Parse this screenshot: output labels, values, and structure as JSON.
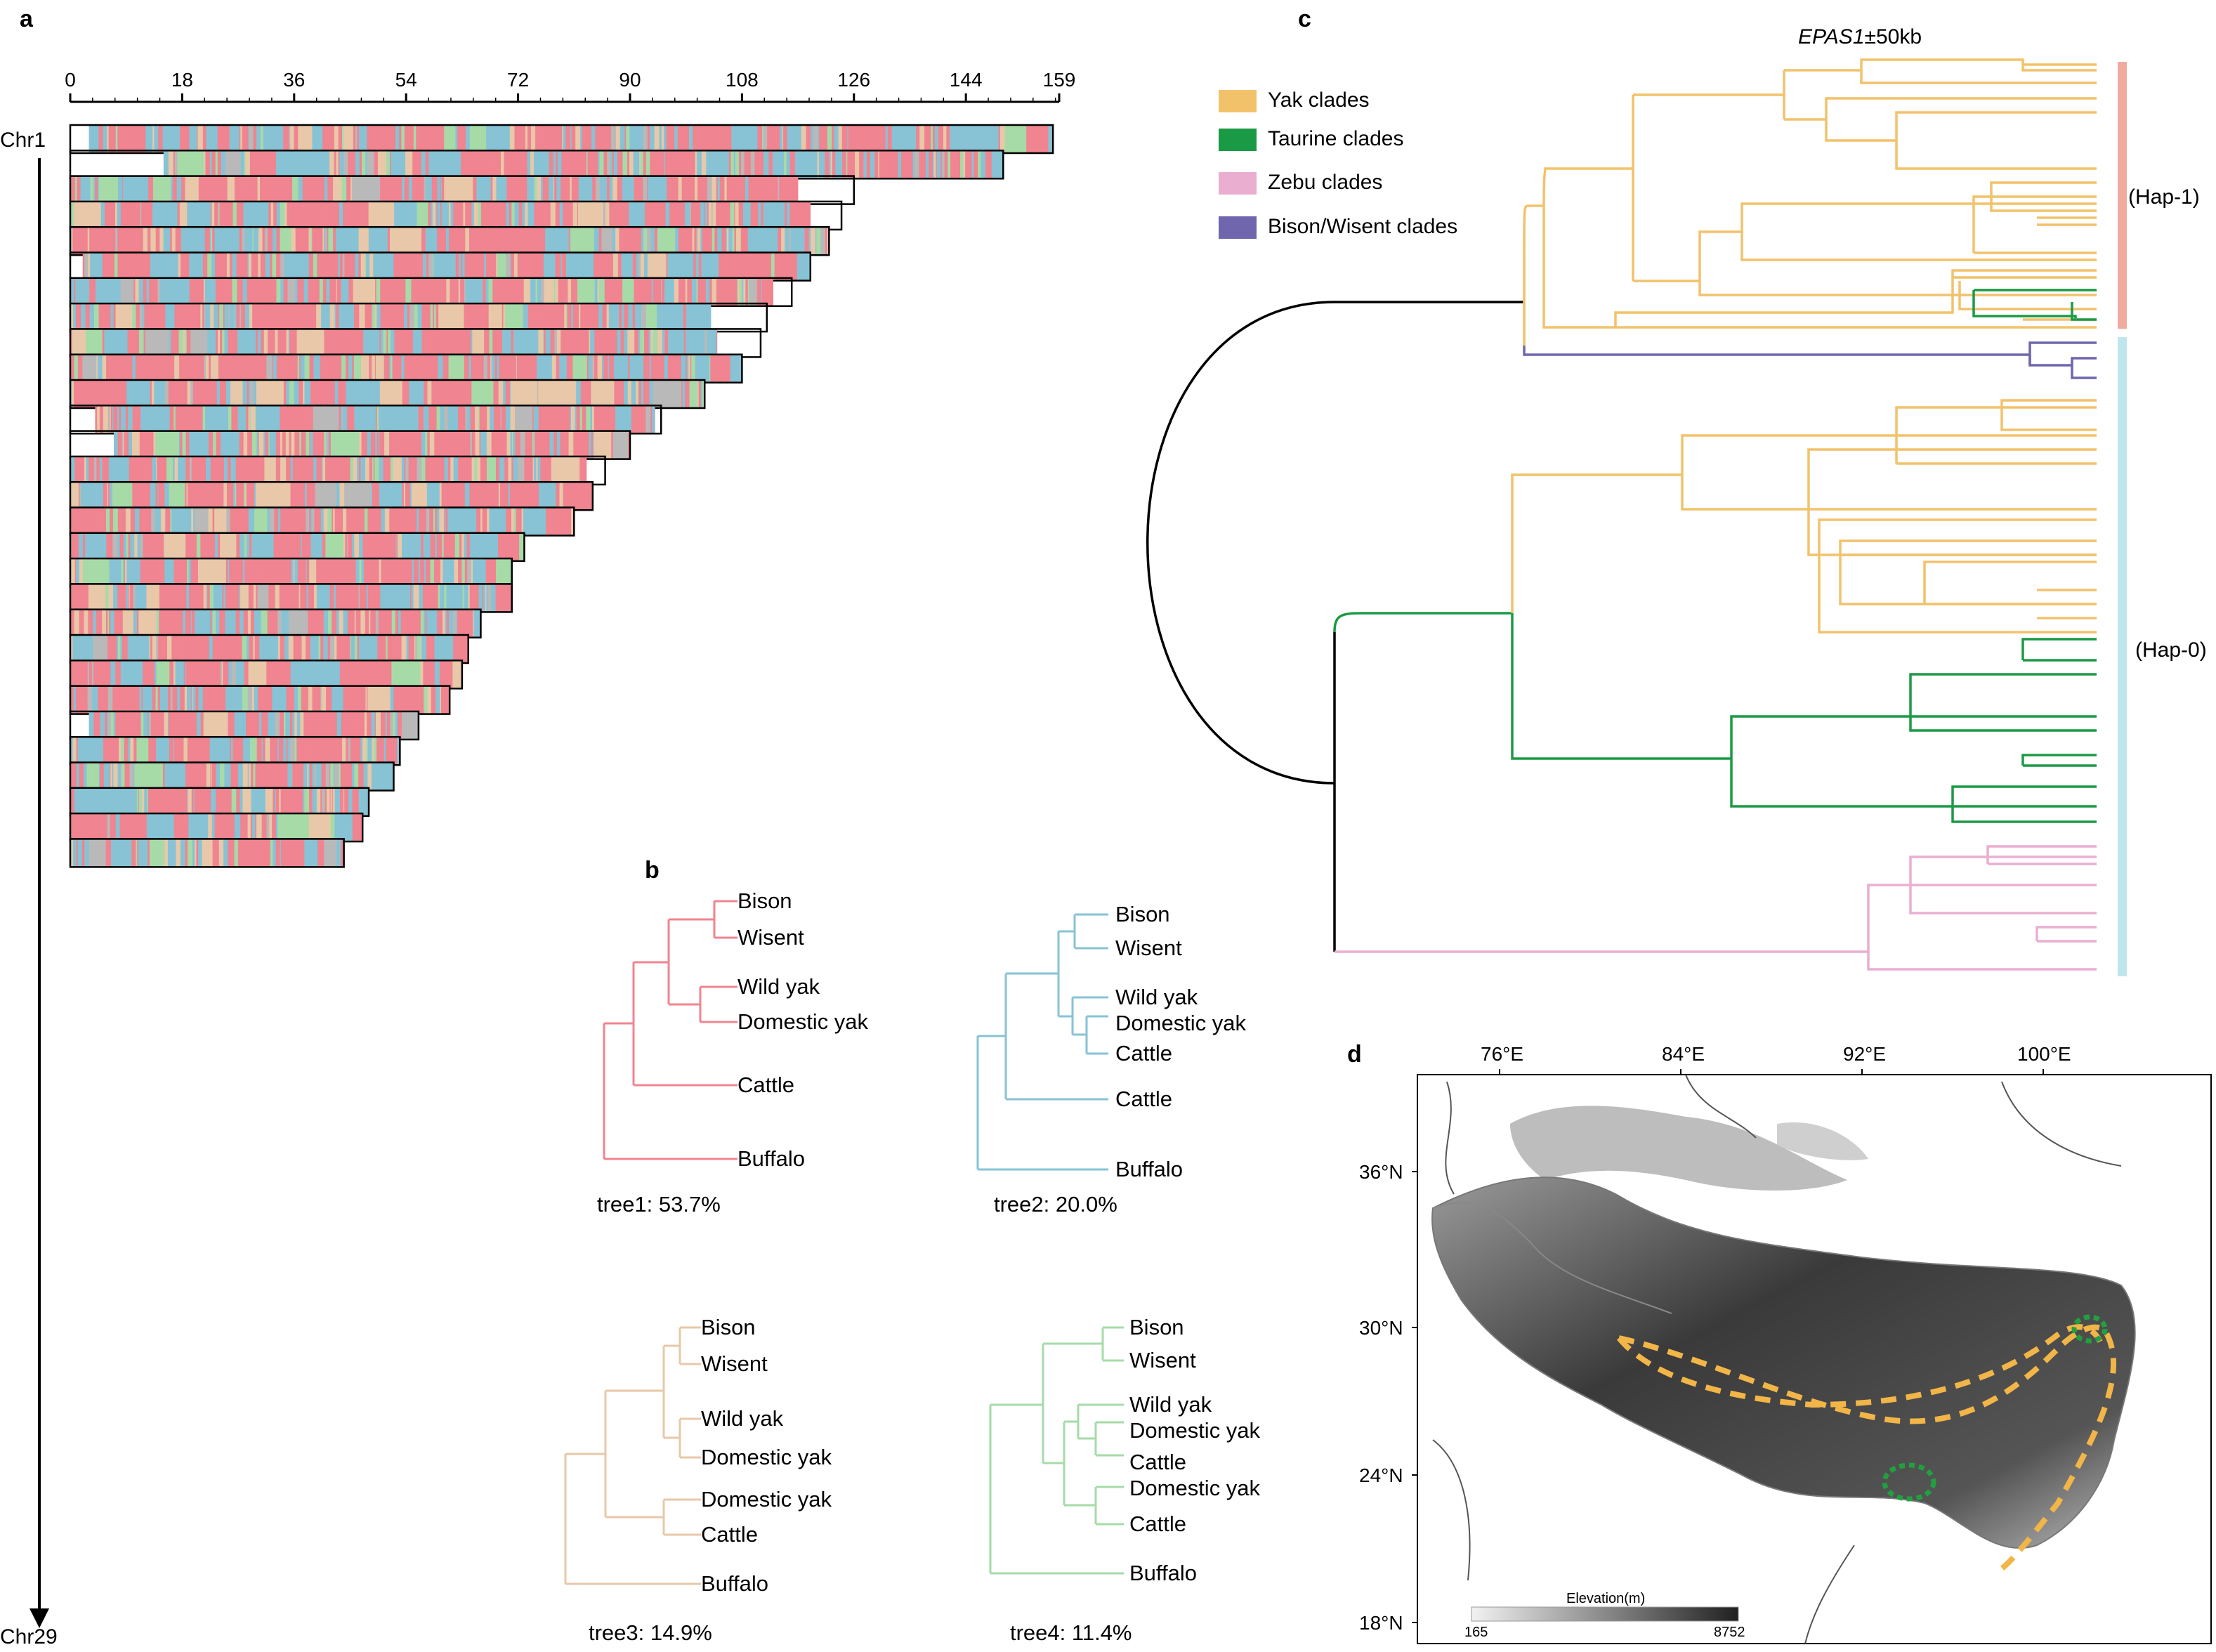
{
  "panels": {
    "a": "a",
    "b": "b",
    "c": "c",
    "d": "d"
  },
  "colors": {
    "tree1": "#f08490",
    "tree2": "#87c3d4",
    "tree3": "#e8c8a8",
    "tree4": "#a6dba8",
    "yak": "#f2c26b",
    "taurine": "#1b9a45",
    "zebu": "#eaaed1",
    "bison": "#6f66ad",
    "hap1": "#f0ab9e",
    "hap0": "#bfe6ec",
    "route": "#f2b548",
    "site": "#21a040"
  },
  "panel_a": {
    "axis_ticks": [
      "0",
      "18",
      "36",
      "54",
      "72",
      "90",
      "108",
      "126",
      "144",
      "159"
    ],
    "axis_max": 159,
    "chr_first": "Chr1",
    "chr_last": "Chr29",
    "chromosomes": [
      {
        "len": 158,
        "start": 3,
        "end": 158
      },
      {
        "len": 150,
        "start": 15,
        "end": 150
      },
      {
        "len": 126,
        "start": 0,
        "end": 117
      },
      {
        "len": 124,
        "start": 0,
        "end": 119
      },
      {
        "len": 122,
        "start": 0,
        "end": 122
      },
      {
        "len": 119,
        "start": 2,
        "end": 119
      },
      {
        "len": 116,
        "start": 0,
        "end": 113
      },
      {
        "len": 112,
        "start": 0,
        "end": 103
      },
      {
        "len": 111,
        "start": 0,
        "end": 104
      },
      {
        "len": 108,
        "start": 0,
        "end": 108
      },
      {
        "len": 102,
        "start": 0,
        "end": 102
      },
      {
        "len": 95,
        "start": 4,
        "end": 94
      },
      {
        "len": 90,
        "start": 7,
        "end": 90
      },
      {
        "len": 86,
        "start": 0,
        "end": 83
      },
      {
        "len": 84,
        "start": 0,
        "end": 84
      },
      {
        "len": 81,
        "start": 0,
        "end": 81
      },
      {
        "len": 73,
        "start": 0,
        "end": 73
      },
      {
        "len": 71,
        "start": 0,
        "end": 71
      },
      {
        "len": 71,
        "start": 0,
        "end": 71
      },
      {
        "len": 66,
        "start": 0,
        "end": 66
      },
      {
        "len": 64,
        "start": 0,
        "end": 64
      },
      {
        "len": 63,
        "start": 0,
        "end": 63
      },
      {
        "len": 61,
        "start": 0,
        "end": 61
      },
      {
        "len": 56,
        "start": 3,
        "end": 56
      },
      {
        "len": 53,
        "start": 0,
        "end": 53
      },
      {
        "len": 52,
        "start": 0,
        "end": 52
      },
      {
        "len": 48,
        "start": 0,
        "end": 48
      },
      {
        "len": 47,
        "start": 0,
        "end": 47
      },
      {
        "len": 44,
        "start": 0,
        "end": 44
      }
    ]
  },
  "panel_b": {
    "tree1": {
      "leaves": [
        "Bison",
        "Wisent",
        "Wild yak",
        "Domestic yak",
        "Cattle",
        "Buffalo"
      ],
      "caption": "tree1: 53.7%"
    },
    "tree2": {
      "leaves": [
        "Bison",
        "Wisent",
        "Wild yak",
        "Domestic yak",
        "Cattle",
        "Cattle",
        "Buffalo"
      ],
      "caption": "tree2: 20.0%"
    },
    "tree3": {
      "leaves": [
        "Bison",
        "Wisent",
        "Wild yak",
        "Domestic yak",
        "Domestic yak",
        "Cattle",
        "Buffalo"
      ],
      "caption": "tree3: 14.9%"
    },
    "tree4": {
      "leaves": [
        "Bison",
        "Wisent",
        "Wild yak",
        "Domestic yak",
        "Cattle",
        "Domestic yak",
        "Cattle",
        "Buffalo"
      ],
      "caption": "tree4: 11.4%"
    }
  },
  "panel_c": {
    "title_gene": "EPAS1",
    "title_rest": "±50kb",
    "legend": [
      "Yak clades",
      "Taurine clades",
      "Zebu clades",
      "Bison/Wisent clades"
    ],
    "hap1": "(Hap-1)",
    "hap0": "(Hap-0)"
  },
  "panel_d": {
    "lon_ticks": [
      "76°E",
      "84°E",
      "92°E",
      "100°E"
    ],
    "lat_ticks": [
      "36°N",
      "30°N",
      "24°N",
      "18°N"
    ],
    "elev_title": "Elevation(m)",
    "elev_min": "165",
    "elev_max": "8752"
  }
}
